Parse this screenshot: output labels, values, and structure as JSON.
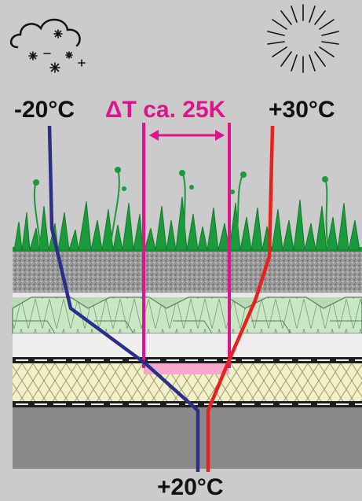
{
  "labels": {
    "cold": "-20°C",
    "delta": "ΔT ca. 25K",
    "hot": "+30°C",
    "interior": "+20°C"
  },
  "icons": {
    "cold": "snow-cloud-icon",
    "hot": "sun-icon"
  },
  "colors": {
    "background": "#cbcbcb",
    "cold_line": "#2b2f8a",
    "hot_line": "#e8211d",
    "delta": "#e0128c",
    "delta_fill": "#f7a8cc",
    "vegetation": "#1a9a3a",
    "gravel": "#8d8d8d",
    "drainage": "#c8e8c4",
    "insulation": "#f2f0c6",
    "base": "#8a8a8a"
  }
}
